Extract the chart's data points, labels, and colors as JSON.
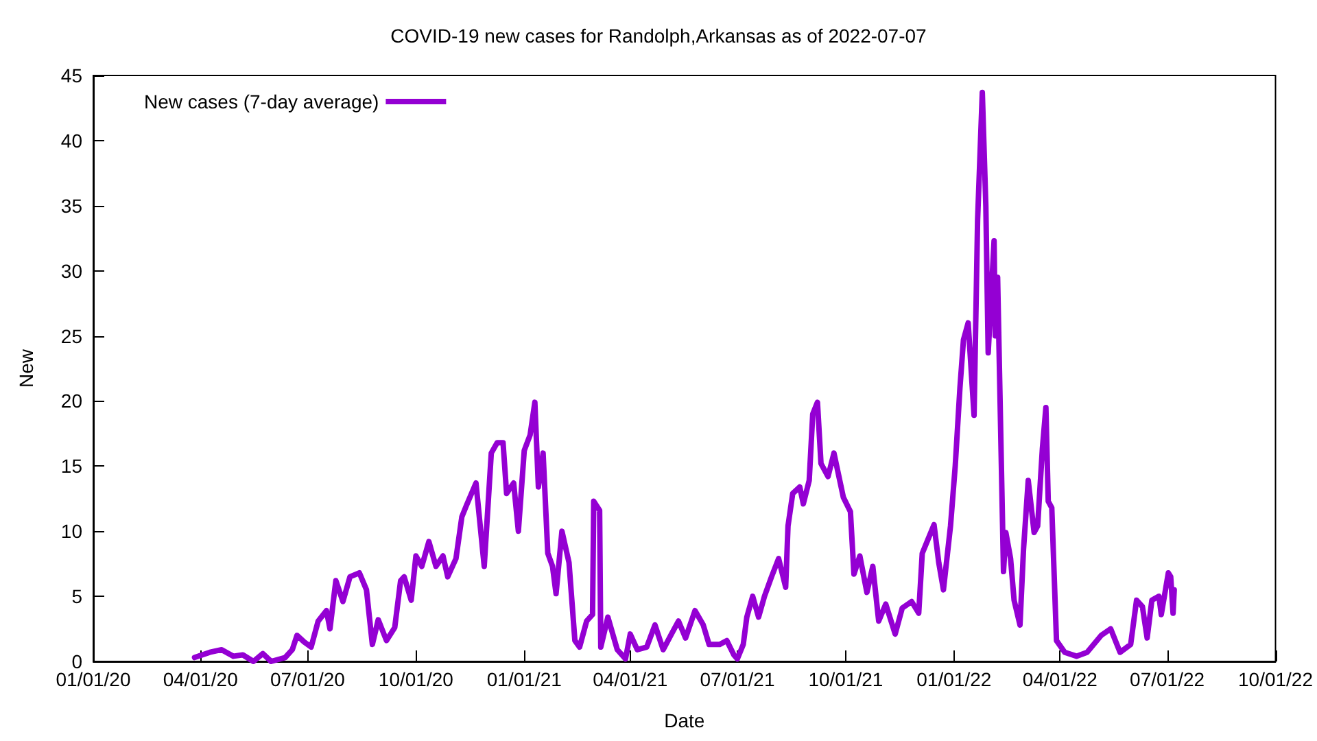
{
  "chart_data": {
    "type": "line",
    "title": "COVID-19 new cases for Randolph,Arkansas as of 2022-07-07",
    "xlabel": "Date",
    "ylabel": "New",
    "xlim": [
      "2020-01-01",
      "2022-10-01"
    ],
    "xticks": [
      {
        "value": "2020-01-01",
        "label": "01/01/20"
      },
      {
        "value": "2020-04-01",
        "label": "04/01/20"
      },
      {
        "value": "2020-07-01",
        "label": "07/01/20"
      },
      {
        "value": "2020-10-01",
        "label": "10/01/20"
      },
      {
        "value": "2021-01-01",
        "label": "01/01/21"
      },
      {
        "value": "2021-04-01",
        "label": "04/01/21"
      },
      {
        "value": "2021-07-01",
        "label": "07/01/21"
      },
      {
        "value": "2021-10-01",
        "label": "10/01/21"
      },
      {
        "value": "2022-01-01",
        "label": "01/01/22"
      },
      {
        "value": "2022-04-01",
        "label": "04/01/22"
      },
      {
        "value": "2022-07-01",
        "label": "07/01/22"
      },
      {
        "value": "2022-10-01",
        "label": "10/01/22"
      }
    ],
    "ylim": [
      0,
      45
    ],
    "yticks": [
      0,
      5,
      10,
      15,
      20,
      25,
      30,
      35,
      40,
      45
    ],
    "grid": false,
    "legend": "top left",
    "marker": "none",
    "line_style": "solid",
    "x": [
      "2020-03-27",
      "2020-04-09",
      "2020-04-19",
      "2020-04-29",
      "2020-05-07",
      "2020-05-16",
      "2020-05-24",
      "2020-05-31",
      "2020-06-12",
      "2020-06-18",
      "2020-06-22",
      "2020-06-28",
      "2020-07-04",
      "2020-07-10",
      "2020-07-17",
      "2020-07-20",
      "2020-07-25",
      "2020-07-31",
      "2020-08-06",
      "2020-08-14",
      "2020-08-20",
      "2020-08-25",
      "2020-08-30",
      "2020-09-06",
      "2020-09-13",
      "2020-09-18",
      "2020-09-21",
      "2020-09-27",
      "2020-10-01",
      "2020-10-06",
      "2020-10-12",
      "2020-10-18",
      "2020-10-24",
      "2020-10-28",
      "2020-11-04",
      "2020-11-09",
      "2020-11-13",
      "2020-11-21",
      "2020-11-28",
      "2020-12-04",
      "2020-12-09",
      "2020-12-14",
      "2020-12-17",
      "2020-12-23",
      "2020-12-27",
      "2021-01-01",
      "2021-01-06",
      "2021-01-10",
      "2021-01-13",
      "2021-01-17",
      "2021-01-21",
      "2021-01-25",
      "2021-01-28",
      "2021-02-02",
      "2021-02-08",
      "2021-02-13",
      "2021-02-17",
      "2021-02-23",
      "2021-02-28",
      "2021-03-01",
      "2021-03-06",
      "2021-03-07",
      "2021-03-13",
      "2021-03-21",
      "2021-03-28",
      "2021-04-01",
      "2021-04-07",
      "2021-04-15",
      "2021-04-22",
      "2021-04-29",
      "2021-05-06",
      "2021-05-12",
      "2021-05-18",
      "2021-05-26",
      "2021-06-02",
      "2021-06-07",
      "2021-06-16",
      "2021-06-22",
      "2021-06-28",
      "2021-07-01",
      "2021-07-06",
      "2021-07-09",
      "2021-07-14",
      "2021-07-19",
      "2021-07-24",
      "2021-07-30",
      "2021-08-05",
      "2021-08-11",
      "2021-08-13",
      "2021-08-17",
      "2021-08-23",
      "2021-08-26",
      "2021-08-31",
      "2021-09-03",
      "2021-09-07",
      "2021-09-10",
      "2021-09-16",
      "2021-09-21",
      "2021-09-29",
      "2021-10-05",
      "2021-10-08",
      "2021-10-13",
      "2021-10-19",
      "2021-10-24",
      "2021-10-29",
      "2021-11-04",
      "2021-11-12",
      "2021-11-18",
      "2021-11-26",
      "2021-12-02",
      "2021-12-05",
      "2021-12-10",
      "2021-12-15",
      "2021-12-19",
      "2021-12-23",
      "2021-12-29",
      "2022-01-02",
      "2022-01-06",
      "2022-01-09",
      "2022-01-13",
      "2022-01-18",
      "2022-01-21",
      "2022-01-25",
      "2022-01-28",
      "2022-01-30",
      "2022-02-04",
      "2022-02-05",
      "2022-02-07",
      "2022-02-12",
      "2022-02-14",
      "2022-02-18",
      "2022-02-21",
      "2022-02-26",
      "2022-03-01",
      "2022-03-05",
      "2022-03-10",
      "2022-03-13",
      "2022-03-17",
      "2022-03-20",
      "2022-03-22",
      "2022-03-25",
      "2022-03-29",
      "2022-04-05",
      "2022-04-15",
      "2022-04-24",
      "2022-05-06",
      "2022-05-14",
      "2022-05-22",
      "2022-05-31",
      "2022-06-05",
      "2022-06-10",
      "2022-06-14",
      "2022-06-18",
      "2022-06-24",
      "2022-06-26",
      "2022-07-02",
      "2022-07-04",
      "2022-07-06",
      "2022-07-07"
    ],
    "series": [
      {
        "name": "New cases (7-day average)",
        "color": "#9400d3",
        "values": [
          0.3,
          0.7,
          0.9,
          0.4,
          0.5,
          0.0,
          0.6,
          0.0,
          0.3,
          0.9,
          2.0,
          1.5,
          1.1,
          3.1,
          3.9,
          2.5,
          6.2,
          4.6,
          6.5,
          6.8,
          5.5,
          1.3,
          3.2,
          1.6,
          2.6,
          6.2,
          6.5,
          4.7,
          8.1,
          7.3,
          9.2,
          7.3,
          8.1,
          6.5,
          7.9,
          11.1,
          12.0,
          13.7,
          7.3,
          16.0,
          16.8,
          16.8,
          12.9,
          13.7,
          10.0,
          16.2,
          17.4,
          19.9,
          13.4,
          16.0,
          8.3,
          7.3,
          5.2,
          10.0,
          7.6,
          1.6,
          1.1,
          3.1,
          3.6,
          12.3,
          11.6,
          1.1,
          3.4,
          0.9,
          0.2,
          2.1,
          0.9,
          1.1,
          2.8,
          0.9,
          2.1,
          3.1,
          1.8,
          3.9,
          2.8,
          1.3,
          1.3,
          1.6,
          0.5,
          0.2,
          1.3,
          3.4,
          5.0,
          3.4,
          5.0,
          6.5,
          7.9,
          5.7,
          10.4,
          12.9,
          13.4,
          12.1,
          13.9,
          19.0,
          19.9,
          15.2,
          14.2,
          16.0,
          12.6,
          11.5,
          6.7,
          8.1,
          5.3,
          7.3,
          3.1,
          4.4,
          2.1,
          4.1,
          4.6,
          3.7,
          8.3,
          9.4,
          10.5,
          7.6,
          5.5,
          10.4,
          15.0,
          21.0,
          24.7,
          26.0,
          18.9,
          33.9,
          43.7,
          35.0,
          23.7,
          32.3,
          25.0,
          29.5,
          6.9,
          9.9,
          7.9,
          4.7,
          2.8,
          8.6,
          13.9,
          9.9,
          10.4,
          16.3,
          19.5,
          12.3,
          11.8,
          1.6,
          0.7,
          0.4,
          0.7,
          2.0,
          2.5,
          0.7,
          1.3,
          4.7,
          4.2,
          1.8,
          4.7,
          5.0,
          3.6,
          6.8,
          6.5,
          3.7,
          5.5
        ]
      }
    ]
  }
}
